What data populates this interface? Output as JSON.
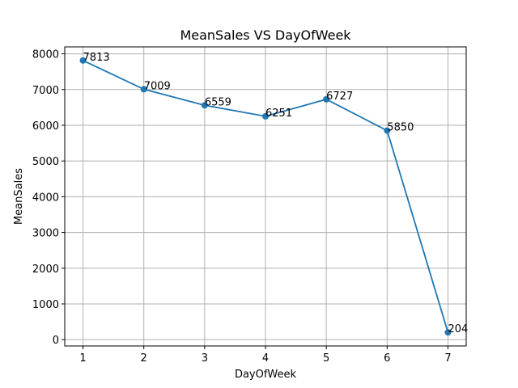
{
  "chart_data": {
    "type": "line",
    "title": "MeanSales VS DayOfWeek",
    "xlabel": "DayOfWeek",
    "ylabel": "MeanSales",
    "x": [
      1,
      2,
      3,
      4,
      5,
      6,
      7
    ],
    "series": [
      {
        "values": [
          7813,
          7009,
          6559,
          6251,
          6727,
          5850,
          204
        ]
      }
    ],
    "point_labels": [
      "7813",
      "7009",
      "6559",
      "6251",
      "6727",
      "5850",
      "204"
    ],
    "xticks": [
      1,
      2,
      3,
      4,
      5,
      6,
      7
    ],
    "yticks": [
      0,
      1000,
      2000,
      3000,
      4000,
      5000,
      6000,
      7000,
      8000
    ],
    "xlim": [
      0.7,
      7.3
    ],
    "ylim": [
      -177,
      8194
    ],
    "grid": true,
    "markers": true,
    "line_color": "#1f77b4",
    "grid_color": "#b0b0b0"
  }
}
